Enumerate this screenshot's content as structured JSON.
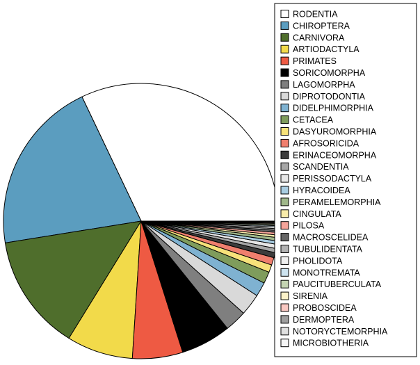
{
  "chart_data": {
    "type": "pie",
    "title": "",
    "legend_placement": "right",
    "categories": [
      "RODENTIA",
      "CHIROPTERA",
      "CARNIVORA",
      "ARTIODACTYLA",
      "PRIMATES",
      "SORICOMORPHA",
      "LAGOMORPHA",
      "DIPROTODONTIA",
      "DIDELPHIMORPHIA",
      "CETACEA",
      "DASYUROMORPHIA",
      "AFROSORICIDA",
      "ERINACEOMORPHA",
      "SCANDENTIA",
      "PERISSODACTYLA",
      "HYRACOIDEA",
      "PERAMELEMORPHIA",
      "CINGULATA",
      "PILOSA",
      "MACROSCELIDEA",
      "TUBULIDENTATA",
      "PHOLIDOTA",
      "MONOTREMATA",
      "PAUCITUBERCULATA",
      "SIRENIA",
      "PROBOSCIDEA",
      "DERMOPTERA",
      "NOTORYCTEMORPHIA",
      "MICROBIOTHERIA"
    ],
    "values": [
      32.6,
      20.8,
      13.9,
      7.9,
      6.0,
      6.0,
      2.6,
      2.6,
      1.7,
      1.4,
      0.9,
      0.9,
      0.6,
      0.5,
      0.5,
      0.4,
      0.4,
      0.3,
      0.3,
      0.25,
      0.2,
      0.2,
      0.15,
      0.15,
      0.12,
      0.1,
      0.08,
      0.05,
      0.05
    ],
    "colors": [
      "#ffffff",
      "#5b9dbf",
      "#4f6e2c",
      "#f2da4a",
      "#ee5a43",
      "#000000",
      "#7f7f7f",
      "#d9d9d9",
      "#7fb2d1",
      "#7f9c5c",
      "#f7e27a",
      "#f07f6e",
      "#3c3c3c",
      "#a6a6a6",
      "#e6e6e6",
      "#a9cde2",
      "#9fb78a",
      "#f9ecaa",
      "#f5a49a",
      "#666666",
      "#b3b3b3",
      "#f0f0f0",
      "#cde3ef",
      "#c4d4b2",
      "#fbf2c9",
      "#f9c8c2",
      "#9e9e9e",
      "#e0e0e0",
      "#f5f5f5"
    ]
  }
}
